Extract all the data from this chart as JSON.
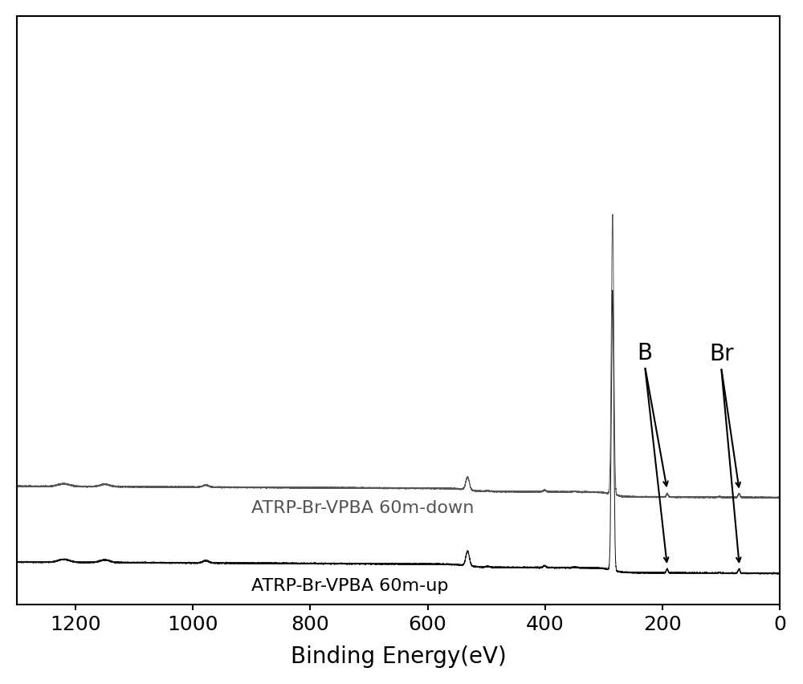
{
  "xlabel": "Binding Energy(eV)",
  "xlim_left": 1300,
  "xlim_right": 0,
  "xticks": [
    1200,
    1000,
    800,
    600,
    400,
    200,
    0
  ],
  "background_color": "#ffffff",
  "line_color_up": "#111111",
  "line_color_down": "#555555",
  "label_up": "ATRP-Br-VPBA 60m-up",
  "label_down": "ATRP-Br-VPBA 60m-down",
  "annotation_B": "B",
  "annotation_Br": "Br",
  "figsize": [
    10.0,
    8.53
  ],
  "xlabel_fontsize": 20,
  "tick_fontsize": 18,
  "label_fontsize": 16,
  "annot_fontsize": 20
}
